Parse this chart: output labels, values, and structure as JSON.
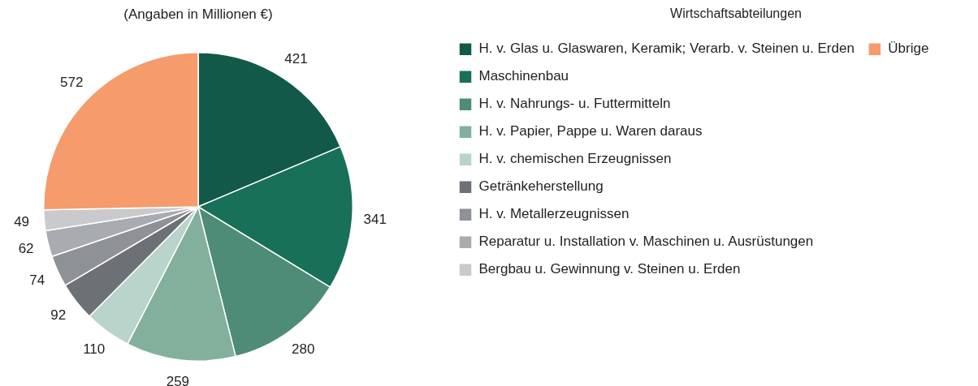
{
  "chart_data": {
    "type": "pie",
    "subtitle": "(Angaben in Millionen €)",
    "legend_title": "Wirtschaftsabteilungen",
    "legend": "right",
    "data_labels": true,
    "categories": [
      "H. v. Glas u. Glaswaren, Keramik; Verarb. v. Steinen u. Erden",
      "Maschinenbau",
      "H. v. Nahrungs- u. Futtermitteln",
      "H. v. Papier, Pappe u. Waren daraus",
      "H. v. chemischen Erzeugnissen",
      "Getränkeherstellung",
      "H. v. Metallerzeugnissen",
      "Reparatur u. Installation v. Maschinen u. Ausrüstungen",
      "Bergbau u. Gewinnung v. Steinen u. Erden",
      "Übrige"
    ],
    "values": [
      421,
      341,
      280,
      259,
      110,
      92,
      74,
      62,
      49,
      572
    ],
    "colors": [
      "#13594a",
      "#187058",
      "#4e8c78",
      "#82b09c",
      "#b9d4ca",
      "#6d7075",
      "#8e9196",
      "#a8abaf",
      "#c8cacc",
      "#f59b6c"
    ]
  }
}
